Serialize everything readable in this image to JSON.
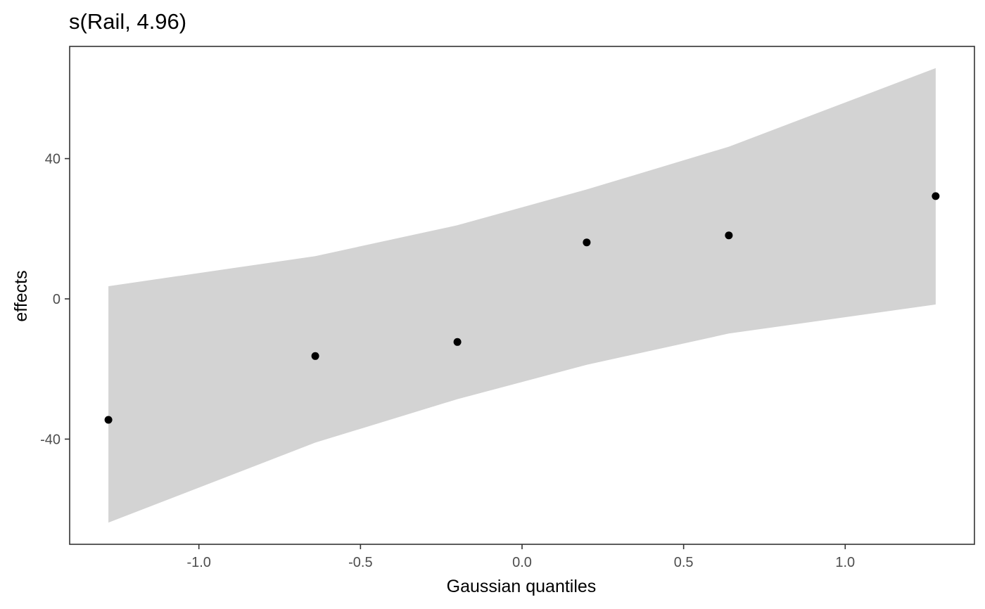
{
  "chart_data": {
    "type": "scatter",
    "title": "s(Rail, 4.96)",
    "xlabel": "Gaussian quantiles",
    "ylabel": "effects",
    "xlim": [
      -1.4,
      1.4
    ],
    "ylim": [
      -70,
      72
    ],
    "x_ticks": [
      -1.0,
      -0.5,
      0.0,
      0.5,
      1.0
    ],
    "x_tick_labels": [
      "-1.0",
      "-0.5",
      "0.0",
      "0.5",
      "1.0"
    ],
    "y_ticks": [
      -40,
      0,
      40
    ],
    "y_tick_labels": [
      "-40",
      "0",
      "40"
    ],
    "grid": false,
    "points": [
      {
        "x": -1.28,
        "y": -34.5
      },
      {
        "x": -0.64,
        "y": -16.3
      },
      {
        "x": -0.2,
        "y": -12.3
      },
      {
        "x": 0.2,
        "y": 16.1
      },
      {
        "x": 0.64,
        "y": 18.1
      },
      {
        "x": 1.28,
        "y": 29.3
      }
    ],
    "band": {
      "x": [
        -1.28,
        -0.64,
        -0.2,
        0.2,
        0.64,
        1.28
      ],
      "lower": [
        -63.8,
        -41.0,
        -28.6,
        -18.8,
        -9.9,
        -1.6
      ],
      "upper": [
        3.6,
        12.2,
        21.0,
        31.2,
        43.4,
        65.8
      ]
    },
    "colors": {
      "band": "#d3d3d3",
      "points": "#000000",
      "panel_border": "#333333",
      "tick_text": "#4d4d4d"
    }
  }
}
